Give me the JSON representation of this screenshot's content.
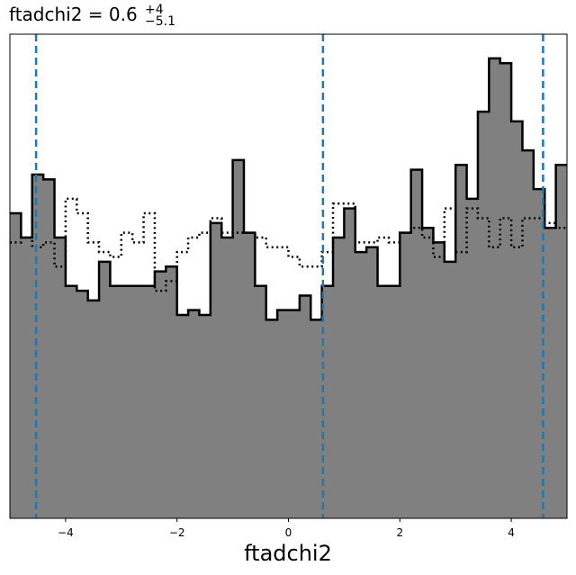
{
  "chart_data": {
    "type": "histogram",
    "title": {
      "prefix": "ftadchi2 = 0.6",
      "sup": "+4",
      "sub": "−5.1"
    },
    "xlabel": "ftadchi2",
    "ylabel": "",
    "xlim": [
      -5,
      5
    ],
    "ylim": [
      0,
      1.0
    ],
    "x_ticks": [
      -4,
      -2,
      0,
      2,
      4
    ],
    "x_tick_labels": [
      "−4",
      "−2",
      "0",
      "2",
      "4"
    ],
    "y_ticks_visible": false,
    "bin_edges": [
      -5.0,
      -4.8,
      -4.6,
      -4.4,
      -4.2,
      -4.0,
      -3.8,
      -3.6,
      -3.4,
      -3.2,
      -3.0,
      -2.8,
      -2.6,
      -2.4,
      -2.2,
      -2.0,
      -1.8,
      -1.6,
      -1.4,
      -1.2,
      -1.0,
      -0.8,
      -0.6,
      -0.4,
      -0.2,
      0.0,
      0.2,
      0.4,
      0.6,
      0.8,
      1.0,
      1.2,
      1.4,
      1.6,
      1.8,
      2.0,
      2.2,
      2.4,
      2.6,
      2.8,
      3.0,
      3.2,
      3.4,
      3.6,
      3.8,
      4.0,
      4.2,
      4.4,
      4.6,
      4.8,
      5.0
    ],
    "series": [
      {
        "kind": "filled",
        "fill": "#808080",
        "stroke": "#000000",
        "values": [
          0.63,
          0.58,
          0.71,
          0.7,
          0.58,
          0.48,
          0.47,
          0.45,
          0.53,
          0.48,
          0.48,
          0.48,
          0.48,
          0.51,
          0.52,
          0.42,
          0.43,
          0.42,
          0.61,
          0.58,
          0.74,
          0.59,
          0.48,
          0.41,
          0.43,
          0.43,
          0.46,
          0.41,
          0.48,
          0.58,
          0.64,
          0.55,
          0.56,
          0.48,
          0.48,
          0.59,
          0.72,
          0.6,
          0.57,
          0.53,
          0.73,
          0.66,
          0.84,
          0.95,
          0.94,
          0.82,
          0.76,
          0.68,
          0.6,
          0.73
        ]
      },
      {
        "kind": "step-dotted",
        "stroke": "#000000",
        "values": [
          0.57,
          0.58,
          0.56,
          0.57,
          0.52,
          0.66,
          0.63,
          0.57,
          0.55,
          0.54,
          0.59,
          0.57,
          0.63,
          0.47,
          0.49,
          0.55,
          0.58,
          0.59,
          0.62,
          0.59,
          0.59,
          0.59,
          0.58,
          0.56,
          0.56,
          0.54,
          0.52,
          0.52,
          0.55,
          0.65,
          0.65,
          0.57,
          0.57,
          0.58,
          0.57,
          0.59,
          0.6,
          0.58,
          0.54,
          0.64,
          0.55,
          0.64,
          0.62,
          0.56,
          0.62,
          0.56,
          0.62,
          0.62,
          0.61,
          0.6
        ]
      }
    ],
    "vlines": {
      "values": [
        -4.53,
        0.62,
        4.57
      ],
      "color": "#1f77b4",
      "style": "dashed"
    }
  }
}
